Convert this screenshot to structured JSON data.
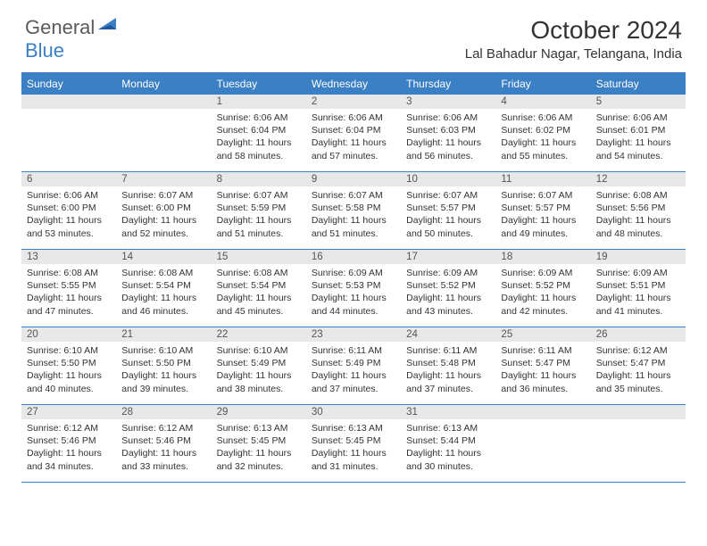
{
  "brand": {
    "general": "General",
    "blue": "Blue"
  },
  "colors": {
    "header_blue": "#3b7fc4",
    "daynum_bg": "#e8e8e8",
    "text": "#333333",
    "logo_gray": "#5a5a5a"
  },
  "title": "October 2024",
  "location": "Lal Bahadur Nagar, Telangana, India",
  "weekdays": [
    "Sunday",
    "Monday",
    "Tuesday",
    "Wednesday",
    "Thursday",
    "Friday",
    "Saturday"
  ],
  "weeks": [
    [
      {
        "n": "",
        "sr": "",
        "ss": "",
        "dl": ""
      },
      {
        "n": "",
        "sr": "",
        "ss": "",
        "dl": ""
      },
      {
        "n": "1",
        "sr": "Sunrise: 6:06 AM",
        "ss": "Sunset: 6:04 PM",
        "dl": "Daylight: 11 hours and 58 minutes."
      },
      {
        "n": "2",
        "sr": "Sunrise: 6:06 AM",
        "ss": "Sunset: 6:04 PM",
        "dl": "Daylight: 11 hours and 57 minutes."
      },
      {
        "n": "3",
        "sr": "Sunrise: 6:06 AM",
        "ss": "Sunset: 6:03 PM",
        "dl": "Daylight: 11 hours and 56 minutes."
      },
      {
        "n": "4",
        "sr": "Sunrise: 6:06 AM",
        "ss": "Sunset: 6:02 PM",
        "dl": "Daylight: 11 hours and 55 minutes."
      },
      {
        "n": "5",
        "sr": "Sunrise: 6:06 AM",
        "ss": "Sunset: 6:01 PM",
        "dl": "Daylight: 11 hours and 54 minutes."
      }
    ],
    [
      {
        "n": "6",
        "sr": "Sunrise: 6:06 AM",
        "ss": "Sunset: 6:00 PM",
        "dl": "Daylight: 11 hours and 53 minutes."
      },
      {
        "n": "7",
        "sr": "Sunrise: 6:07 AM",
        "ss": "Sunset: 6:00 PM",
        "dl": "Daylight: 11 hours and 52 minutes."
      },
      {
        "n": "8",
        "sr": "Sunrise: 6:07 AM",
        "ss": "Sunset: 5:59 PM",
        "dl": "Daylight: 11 hours and 51 minutes."
      },
      {
        "n": "9",
        "sr": "Sunrise: 6:07 AM",
        "ss": "Sunset: 5:58 PM",
        "dl": "Daylight: 11 hours and 51 minutes."
      },
      {
        "n": "10",
        "sr": "Sunrise: 6:07 AM",
        "ss": "Sunset: 5:57 PM",
        "dl": "Daylight: 11 hours and 50 minutes."
      },
      {
        "n": "11",
        "sr": "Sunrise: 6:07 AM",
        "ss": "Sunset: 5:57 PM",
        "dl": "Daylight: 11 hours and 49 minutes."
      },
      {
        "n": "12",
        "sr": "Sunrise: 6:08 AM",
        "ss": "Sunset: 5:56 PM",
        "dl": "Daylight: 11 hours and 48 minutes."
      }
    ],
    [
      {
        "n": "13",
        "sr": "Sunrise: 6:08 AM",
        "ss": "Sunset: 5:55 PM",
        "dl": "Daylight: 11 hours and 47 minutes."
      },
      {
        "n": "14",
        "sr": "Sunrise: 6:08 AM",
        "ss": "Sunset: 5:54 PM",
        "dl": "Daylight: 11 hours and 46 minutes."
      },
      {
        "n": "15",
        "sr": "Sunrise: 6:08 AM",
        "ss": "Sunset: 5:54 PM",
        "dl": "Daylight: 11 hours and 45 minutes."
      },
      {
        "n": "16",
        "sr": "Sunrise: 6:09 AM",
        "ss": "Sunset: 5:53 PM",
        "dl": "Daylight: 11 hours and 44 minutes."
      },
      {
        "n": "17",
        "sr": "Sunrise: 6:09 AM",
        "ss": "Sunset: 5:52 PM",
        "dl": "Daylight: 11 hours and 43 minutes."
      },
      {
        "n": "18",
        "sr": "Sunrise: 6:09 AM",
        "ss": "Sunset: 5:52 PM",
        "dl": "Daylight: 11 hours and 42 minutes."
      },
      {
        "n": "19",
        "sr": "Sunrise: 6:09 AM",
        "ss": "Sunset: 5:51 PM",
        "dl": "Daylight: 11 hours and 41 minutes."
      }
    ],
    [
      {
        "n": "20",
        "sr": "Sunrise: 6:10 AM",
        "ss": "Sunset: 5:50 PM",
        "dl": "Daylight: 11 hours and 40 minutes."
      },
      {
        "n": "21",
        "sr": "Sunrise: 6:10 AM",
        "ss": "Sunset: 5:50 PM",
        "dl": "Daylight: 11 hours and 39 minutes."
      },
      {
        "n": "22",
        "sr": "Sunrise: 6:10 AM",
        "ss": "Sunset: 5:49 PM",
        "dl": "Daylight: 11 hours and 38 minutes."
      },
      {
        "n": "23",
        "sr": "Sunrise: 6:11 AM",
        "ss": "Sunset: 5:49 PM",
        "dl": "Daylight: 11 hours and 37 minutes."
      },
      {
        "n": "24",
        "sr": "Sunrise: 6:11 AM",
        "ss": "Sunset: 5:48 PM",
        "dl": "Daylight: 11 hours and 37 minutes."
      },
      {
        "n": "25",
        "sr": "Sunrise: 6:11 AM",
        "ss": "Sunset: 5:47 PM",
        "dl": "Daylight: 11 hours and 36 minutes."
      },
      {
        "n": "26",
        "sr": "Sunrise: 6:12 AM",
        "ss": "Sunset: 5:47 PM",
        "dl": "Daylight: 11 hours and 35 minutes."
      }
    ],
    [
      {
        "n": "27",
        "sr": "Sunrise: 6:12 AM",
        "ss": "Sunset: 5:46 PM",
        "dl": "Daylight: 11 hours and 34 minutes."
      },
      {
        "n": "28",
        "sr": "Sunrise: 6:12 AM",
        "ss": "Sunset: 5:46 PM",
        "dl": "Daylight: 11 hours and 33 minutes."
      },
      {
        "n": "29",
        "sr": "Sunrise: 6:13 AM",
        "ss": "Sunset: 5:45 PM",
        "dl": "Daylight: 11 hours and 32 minutes."
      },
      {
        "n": "30",
        "sr": "Sunrise: 6:13 AM",
        "ss": "Sunset: 5:45 PM",
        "dl": "Daylight: 11 hours and 31 minutes."
      },
      {
        "n": "31",
        "sr": "Sunrise: 6:13 AM",
        "ss": "Sunset: 5:44 PM",
        "dl": "Daylight: 11 hours and 30 minutes."
      },
      {
        "n": "",
        "sr": "",
        "ss": "",
        "dl": ""
      },
      {
        "n": "",
        "sr": "",
        "ss": "",
        "dl": ""
      }
    ]
  ]
}
